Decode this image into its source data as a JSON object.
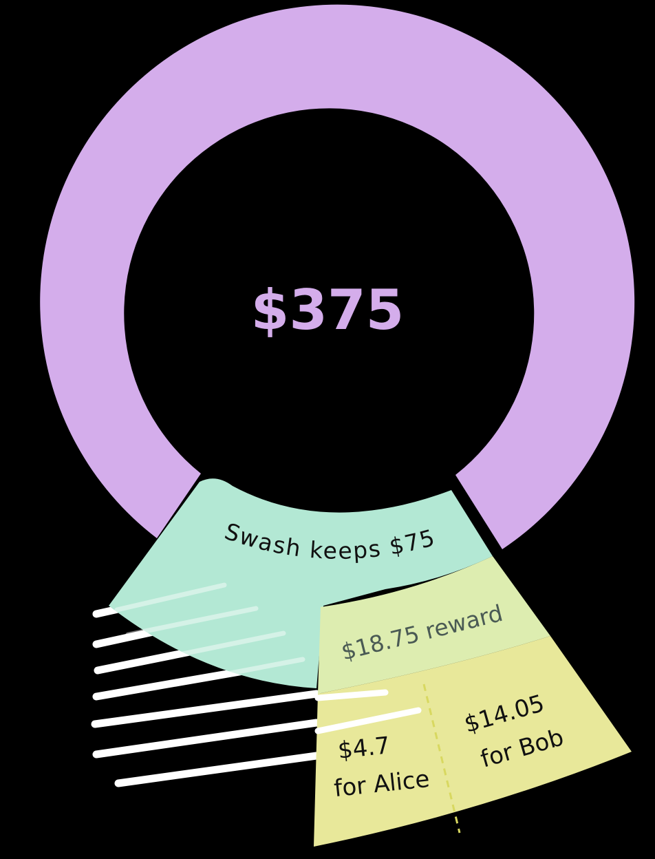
{
  "total": {
    "label": "$375",
    "color": "#D4ADEB"
  },
  "segments": {
    "swash": {
      "label": "Swash keeps $75",
      "color": "#B3E8D4",
      "text_color": "#111111"
    },
    "reward": {
      "label": "$18.75 reward",
      "color": "#DDEDB0",
      "text_color": "#4A5A54"
    },
    "alice": {
      "amount": "$4.7",
      "name": "for Alice",
      "color": "#E8E89A",
      "text_color": "#111111"
    },
    "bob": {
      "amount": "$14.05",
      "name": "for Bob",
      "color": "#E8E89A",
      "text_color": "#111111"
    }
  },
  "colors": {
    "background": "#000000",
    "stripes": "#FFFFFF",
    "divider": "#D8D860"
  }
}
